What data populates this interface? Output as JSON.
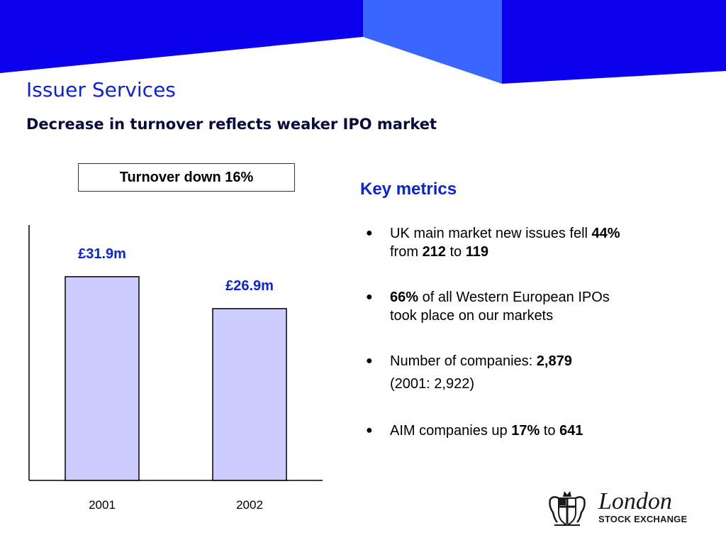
{
  "title": "Issuer Services",
  "subtitle": "Decrease in turnover reflects weaker IPO market",
  "callout": "Turnover down 16%",
  "colors": {
    "banner_dark": "#0a00ee",
    "banner_light": "#3a66ff",
    "title": "#0b24d6",
    "bar_fill": "#ccccff"
  },
  "chart_data": {
    "type": "bar",
    "categories": [
      "2001",
      "2002"
    ],
    "values": [
      31.9,
      26.9
    ],
    "data_labels": [
      "£31.9m",
      "£26.9m"
    ],
    "ylim": [
      0,
      40
    ],
    "grid": false
  },
  "key_metrics": {
    "heading": "Key metrics",
    "items": [
      {
        "t1": "UK main market new issues fell ",
        "b1": "44%",
        "t2": "from ",
        "b2": "212",
        "t3": " to ",
        "b3": "119"
      },
      {
        "b1": "66%",
        "t1": " of all Western European IPOs",
        "t2": "took place on our markets"
      },
      {
        "t1": "Number of companies: ",
        "b1": "2,879",
        "t2": "(2001: 2,922)"
      },
      {
        "t1": "AIM companies up ",
        "b1": "17%",
        "t2": " to ",
        "b2": "641"
      }
    ]
  },
  "logo": {
    "line1": "London",
    "line2": "STOCK EXCHANGE"
  }
}
